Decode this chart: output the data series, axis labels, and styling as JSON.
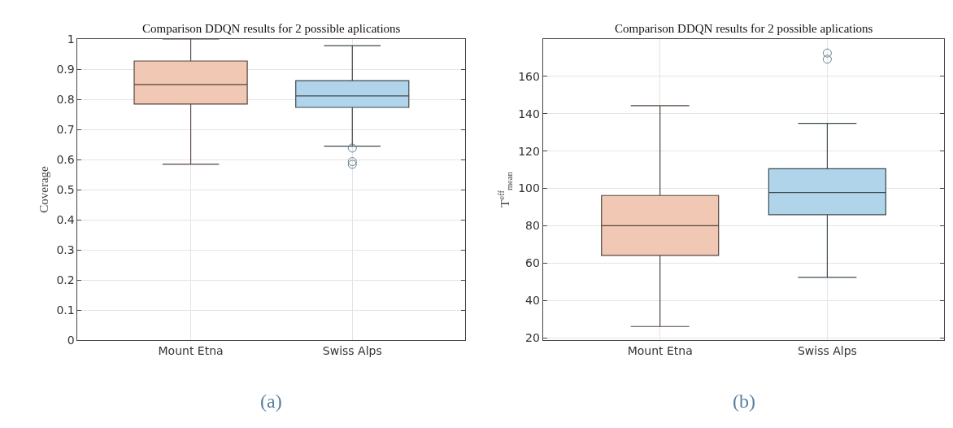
{
  "chart_data": [
    {
      "type": "box",
      "title": "Comparison DDQN results for 2 possible aplications",
      "ylabel": "Coverage",
      "categories": [
        "Mount Etna",
        "Swiss Alps"
      ],
      "colors": [
        "#f0c8b4",
        "#b0d4ea"
      ],
      "boxes": [
        {
          "low": 0.584,
          "q1": 0.784,
          "median": 0.849,
          "q3": 0.927,
          "high": 1.0
        },
        {
          "low": 0.644,
          "q1": 0.773,
          "median": 0.811,
          "q3": 0.862,
          "high": 0.978,
          "outliers": [
            0.638,
            0.593,
            0.584
          ]
        }
      ],
      "ylim": [
        0,
        1
      ],
      "yticks": [
        0,
        0.1,
        0.2,
        0.3,
        0.4,
        0.5,
        0.6,
        0.7,
        0.8,
        0.9,
        1
      ],
      "grid": true,
      "marker": "circle",
      "annotations": [
        "(a)"
      ]
    },
    {
      "type": "box",
      "title": "Comparison DDQN results for 2 possible aplications",
      "ylabel": "T$^{eff}$$_{mean}$",
      "categories": [
        "Mount Etna",
        "Swiss Alps"
      ],
      "colors": [
        "#f0c8b4",
        "#b0d4ea"
      ],
      "boxes": [
        {
          "low": 26,
          "q1": 64.1,
          "median": 80,
          "q3": 96.2,
          "high": 144.3
        },
        {
          "low": 52.3,
          "q1": 85.9,
          "median": 97.8,
          "q3": 110.5,
          "high": 134.8,
          "outliers": [
            172.5,
            169.2
          ]
        }
      ],
      "ylim": [
        18.7,
        180
      ],
      "yticks": [
        20,
        40,
        60,
        80,
        100,
        120,
        140,
        160
      ],
      "grid": true,
      "marker": "circle",
      "annotations": [
        "(b)"
      ]
    }
  ]
}
